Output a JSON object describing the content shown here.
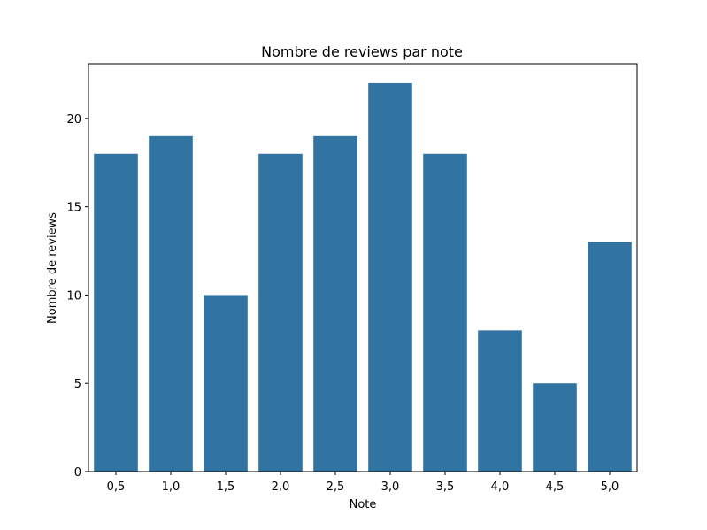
{
  "chart_data": {
    "type": "bar",
    "title": "Nombre de reviews par note",
    "xlabel": "Note",
    "ylabel": "Nombre de reviews",
    "categories": [
      "0,5",
      "1,0",
      "1,5",
      "2,0",
      "2,5",
      "3,0",
      "3,5",
      "4,0",
      "4,5",
      "5,0"
    ],
    "values": [
      18,
      19,
      10,
      18,
      19,
      22,
      18,
      8,
      5,
      13
    ],
    "ylim": [
      0,
      23.1
    ],
    "yticks": [
      0,
      5,
      10,
      15,
      20
    ],
    "grid": false,
    "legend": "none",
    "bar_color": "#3274a1"
  }
}
